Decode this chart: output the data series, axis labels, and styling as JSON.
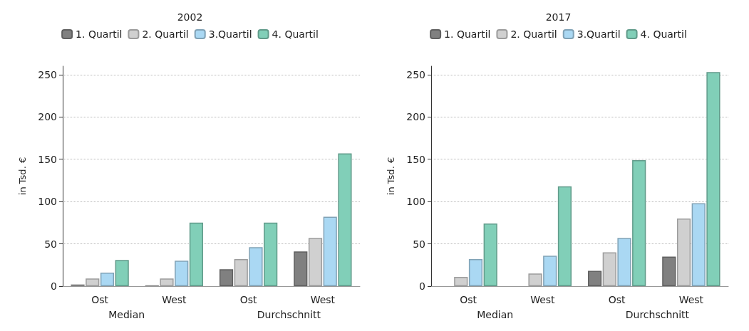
{
  "chart_data": [
    {
      "type": "bar",
      "title": "2002",
      "ylabel": "in Tsd. €",
      "categories": [
        "Ost",
        "West",
        "Ost",
        "West"
      ],
      "annotations": [
        "Median",
        "Durchschnitt"
      ],
      "ylim": [
        0,
        260
      ],
      "yticks": [
        0,
        50,
        100,
        150,
        200,
        250
      ],
      "grid": "y",
      "legend": "top",
      "series": [
        {
          "name": "1. Quartil",
          "color": "#808080",
          "values": [
            2,
            1,
            20,
            41
          ]
        },
        {
          "name": "2. Quartil",
          "color": "#d0d0d0",
          "values": [
            9,
            9,
            32,
            57
          ]
        },
        {
          "name": "3.Quartil",
          "color": "#aad8f3",
          "values": [
            16,
            30,
            46,
            82
          ]
        },
        {
          "name": "4. Quartil",
          "color": "#81cfb8",
          "values": [
            31,
            75,
            75,
            157
          ]
        }
      ]
    },
    {
      "type": "bar",
      "title": "2017",
      "ylabel": "in Tsd. €",
      "categories": [
        "Ost",
        "West",
        "Ost",
        "West"
      ],
      "annotations": [
        "Median",
        "Durchschnitt"
      ],
      "ylim": [
        0,
        260
      ],
      "yticks": [
        0,
        50,
        100,
        150,
        200,
        250
      ],
      "grid": "y",
      "legend": "top",
      "series": [
        {
          "name": "1. Quartil",
          "color": "#808080",
          "values": [
            0,
            0,
            18,
            35
          ]
        },
        {
          "name": "2. Quartil",
          "color": "#d0d0d0",
          "values": [
            11,
            15,
            40,
            80
          ]
        },
        {
          "name": "3.Quartil",
          "color": "#aad8f3",
          "values": [
            32,
            36,
            57,
            98
          ]
        },
        {
          "name": "4. Quartil",
          "color": "#81cfb8",
          "values": [
            74,
            118,
            149,
            253
          ]
        }
      ]
    }
  ]
}
